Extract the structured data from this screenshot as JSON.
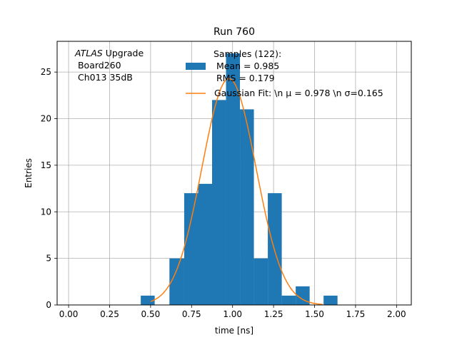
{
  "chart_data": {
    "type": "bar",
    "title": "Run 760",
    "xlabel": "time [ns]",
    "ylabel": "Entries",
    "xlim": [
      -0.07,
      2.09
    ],
    "ylim": [
      0,
      28.3
    ],
    "grid": true,
    "xticks": [
      "0.00",
      "0.25",
      "0.50",
      "0.75",
      "1.00",
      "1.25",
      "1.50",
      "1.75",
      "2.00"
    ],
    "xtick_values": [
      0.0,
      0.25,
      0.5,
      0.75,
      1.0,
      1.25,
      1.5,
      1.75,
      2.0
    ],
    "yticks": [
      "0",
      "5",
      "10",
      "15",
      "20",
      "25"
    ],
    "ytick_values": [
      0,
      5,
      10,
      15,
      20,
      25
    ],
    "annotation": {
      "line1_italic": "ATLAS",
      "line1_rest": " Upgrade",
      "line2": " Board260",
      "line3": " Ch013 35dB"
    },
    "legend": {
      "position": "top-center",
      "entries": [
        {
          "kind": "patch",
          "color": "#1f77b4",
          "lines": [
            "Samples (122):",
            " Mean = 0.985",
            " RMS = 0.179"
          ]
        },
        {
          "kind": "line",
          "color": "#ff7f0e",
          "lines": [
            "Gaussian Fit: \\n μ = 0.978 \\n σ=0.165"
          ]
        }
      ]
    },
    "series": [
      {
        "kind": "histogram",
        "color": "#1f77b4",
        "bins": [
          {
            "x0": 0.44,
            "x1": 0.525,
            "count": 1
          },
          {
            "x0": 0.615,
            "x1": 0.705,
            "count": 5
          },
          {
            "x0": 0.705,
            "x1": 0.79,
            "count": 12
          },
          {
            "x0": 0.79,
            "x1": 0.875,
            "count": 13
          },
          {
            "x0": 0.875,
            "x1": 0.96,
            "count": 22
          },
          {
            "x0": 0.96,
            "x1": 1.045,
            "count": 27
          },
          {
            "x0": 1.045,
            "x1": 1.13,
            "count": 21
          },
          {
            "x0": 1.13,
            "x1": 1.215,
            "count": 5
          },
          {
            "x0": 1.215,
            "x1": 1.3,
            "count": 12
          },
          {
            "x0": 1.3,
            "x1": 1.385,
            "count": 1
          },
          {
            "x0": 1.385,
            "x1": 1.47,
            "count": 2
          },
          {
            "x0": 1.555,
            "x1": 1.64,
            "count": 1
          }
        ]
      },
      {
        "kind": "gaussian",
        "color": "#ff7f0e",
        "mu": 0.978,
        "sigma": 0.165,
        "amplitude": 24.3,
        "x_range": [
          0.5,
          1.55
        ]
      }
    ]
  }
}
